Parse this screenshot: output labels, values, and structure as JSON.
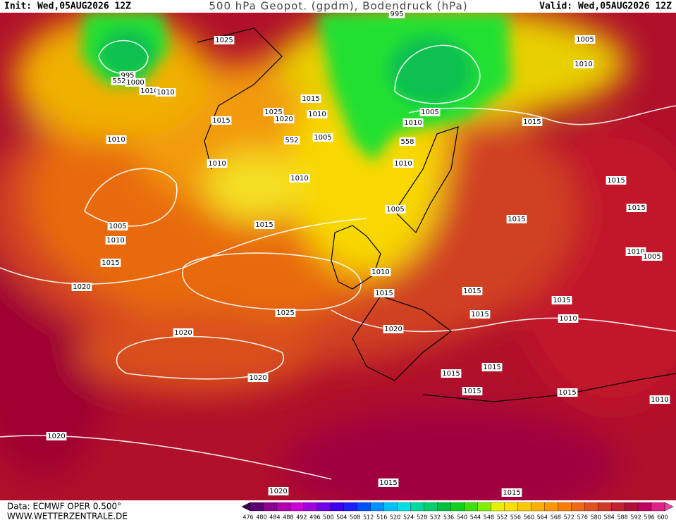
{
  "header": {
    "init": "Init: Wed,05AUG2026 12Z",
    "title": "500 hPa Geopot. (gpdm), Bodendruck (hPa)",
    "valid": "Valid: Wed,05AUG2026 12Z"
  },
  "footer": {
    "source": "Data: ECMWF OPER 0.500°",
    "site": "WWW.WETTERZENTRALE.DE"
  },
  "colorbar": {
    "labels": [
      476,
      480,
      484,
      488,
      492,
      496,
      500,
      504,
      508,
      512,
      516,
      520,
      524,
      528,
      532,
      536,
      540,
      544,
      548,
      552,
      556,
      560,
      564,
      568,
      572,
      576,
      580,
      584,
      588,
      592,
      596,
      600
    ]
  },
  "map": {
    "isobar_labels": [
      "1025",
      "995",
      "1000",
      "1010",
      "1010",
      "1015",
      "1025",
      "1020",
      "1010",
      "1015",
      "1005",
      "1010",
      "1015",
      "1005",
      "1010",
      "1010",
      "1005",
      "1010",
      "1010",
      "1010",
      "1015",
      "1015",
      "1005",
      "1015",
      "1005",
      "1010",
      "1015",
      "1010",
      "1005",
      "1015",
      "1010",
      "1020",
      "1015",
      "1015",
      "1015",
      "1015",
      "1010",
      "1025",
      "1020",
      "1020",
      "1015",
      "1015",
      "1020",
      "1015",
      "1015",
      "1010",
      "1020",
      "1015",
      "1015",
      "1020",
      "995"
    ],
    "height_labels": [
      "552",
      "552",
      "558"
    ]
  }
}
